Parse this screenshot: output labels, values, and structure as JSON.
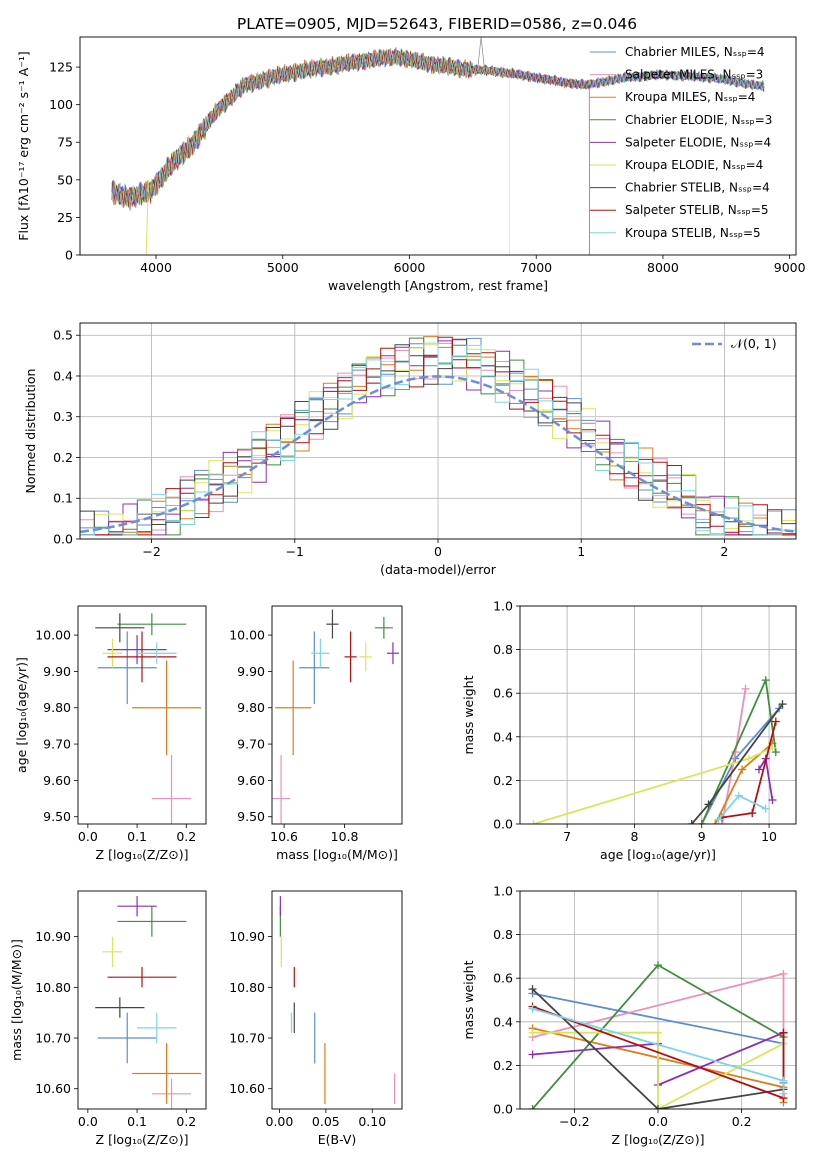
{
  "figure_title": "PLATE=0905, MJD=52643, FIBERID=0586, z=0.046",
  "colors": {
    "Chabrier MILES": "#5b8ed6",
    "Salpeter MILES": "#f28eb6",
    "Kroupa MILES": "#e07b1a",
    "Chabrier ELODIE": "#3f8f3f",
    "Salpeter ELODIE": "#8c2fb8",
    "Kroupa ELODIE": "#d8e65a",
    "Chabrier STELIB": "#444444",
    "Salpeter STELIB": "#b50f0f",
    "Kroupa STELIB": "#7ad6e6",
    "normal": "#6b8fd8"
  },
  "chart_data": [
    {
      "id": "spectrum",
      "type": "line",
      "title": "PLATE=0905, MJD=52643, FIBERID=0586, z=0.046",
      "xlabel": "wavelength [Angstrom, rest frame]",
      "ylabel": "Flux [fλ10⁻¹⁷ erg cm⁻² s⁻¹ A⁻¹]",
      "xlim": [
        3400,
        9050
      ],
      "ylim": [
        0,
        145
      ],
      "xticks": [
        4000,
        5000,
        6000,
        7000,
        8000,
        9000
      ],
      "yticks": [
        0,
        25,
        50,
        75,
        100,
        125
      ],
      "legend_position": "top-right",
      "series": [
        {
          "name": "Chabrier MILES, Nₛₛₚ=4"
        },
        {
          "name": "Salpeter MILES, Nₛₛₚ=3"
        },
        {
          "name": "Kroupa MILES, Nₛₛₚ=4"
        },
        {
          "name": "Chabrier ELODIE, Nₛₛₚ=3"
        },
        {
          "name": "Salpeter ELODIE, Nₛₛₚ=4"
        },
        {
          "name": "Kroupa ELODIE, Nₛₛₚ=4"
        },
        {
          "name": "Chabrier STELIB, Nₛₛₚ=4"
        },
        {
          "name": "Salpeter STELIB, Nₛₛₚ=5"
        },
        {
          "name": "Kroupa STELIB, Nₛₛₚ=5"
        }
      ],
      "continuum": {
        "x": [
          3650,
          3800,
          3950,
          4100,
          4300,
          4500,
          4700,
          4900,
          5100,
          5400,
          5700,
          5900,
          6100,
          6400,
          6700,
          7000,
          7200,
          7400,
          7700,
          8000,
          8400,
          8800
        ],
        "y": [
          42,
          38,
          42,
          58,
          75,
          98,
          113,
          118,
          122,
          126,
          130,
          132,
          128,
          124,
          122,
          118,
          115,
          113,
          118,
          120,
          118,
          112
        ]
      },
      "cutoffs": [
        {
          "series": "Kroupa ELODIE, Nₛₛₚ=4",
          "x": 6790
        },
        {
          "series": "Salpeter STELIB, Nₛₛₚ=5",
          "x": 7420
        }
      ]
    },
    {
      "id": "residuals",
      "type": "line",
      "xlabel": "(data-model)/error",
      "ylabel": "Normed distribution",
      "xlim": [
        -2.5,
        2.5
      ],
      "ylim": [
        0,
        0.53
      ],
      "xticks": [
        -2,
        -1,
        0,
        1,
        2
      ],
      "yticks": [
        0.0,
        0.1,
        0.2,
        0.3,
        0.4,
        0.5
      ],
      "grid": true,
      "legend_position": "top-right",
      "legend": [
        "𝒩(0, 1)"
      ]
    },
    {
      "id": "age_vs_Z",
      "type": "scatter",
      "xlabel": "Z [log₁₀(Z/Z⊙)]",
      "ylabel": "age  [log₁₀(age/yr)]",
      "xlim": [
        -0.02,
        0.24
      ],
      "ylim": [
        9.48,
        10.08
      ],
      "xticks": [
        0.0,
        0.1,
        0.2
      ],
      "yticks": [
        9.5,
        9.6,
        9.7,
        9.8,
        9.9,
        10.0
      ],
      "points": [
        {
          "series": "Chabrier MILES",
          "x": 0.08,
          "y": 9.91,
          "xerr": 0.06,
          "yerr": 0.1
        },
        {
          "series": "Salpeter MILES",
          "x": 0.17,
          "y": 9.55,
          "xerr": 0.04,
          "yerr": 0.12
        },
        {
          "series": "Kroupa MILES",
          "x": 0.16,
          "y": 9.8,
          "xerr": 0.07,
          "yerr": 0.13
        },
        {
          "series": "Chabrier ELODIE",
          "x": 0.13,
          "y": 10.03,
          "xerr": 0.07,
          "yerr": 0.03
        },
        {
          "series": "Salpeter ELODIE",
          "x": 0.1,
          "y": 9.96,
          "xerr": 0.06,
          "yerr": 0.04
        },
        {
          "series": "Kroupa ELODIE",
          "x": 0.05,
          "y": 9.95,
          "xerr": 0.02,
          "yerr": 0.04
        },
        {
          "series": "Chabrier STELIB",
          "x": 0.065,
          "y": 10.02,
          "xerr": 0.05,
          "yerr": 0.04
        },
        {
          "series": "Salpeter STELIB",
          "x": 0.11,
          "y": 9.94,
          "xerr": 0.07,
          "yerr": 0.07
        },
        {
          "series": "Kroupa STELIB",
          "x": 0.14,
          "y": 9.95,
          "xerr": 0.04,
          "yerr": 0.03
        }
      ]
    },
    {
      "id": "age_vs_mass",
      "type": "scatter",
      "xlabel": "mass [log₁₀(M/M⊙)]",
      "ylabel": "",
      "xlim": [
        10.56,
        10.99
      ],
      "ylim": [
        9.48,
        10.08
      ],
      "xticks": [
        10.6,
        10.8
      ],
      "yticks": [
        9.5,
        9.6,
        9.7,
        9.8,
        9.9,
        10.0
      ],
      "points": [
        {
          "series": "Chabrier MILES",
          "x": 10.7,
          "y": 9.91,
          "xerr": 0.05,
          "yerr": 0.1
        },
        {
          "series": "Salpeter MILES",
          "x": 10.59,
          "y": 9.55,
          "xerr": 0.03,
          "yerr": 0.12
        },
        {
          "series": "Kroupa MILES",
          "x": 10.63,
          "y": 9.8,
          "xerr": 0.06,
          "yerr": 0.13
        },
        {
          "series": "Chabrier ELODIE",
          "x": 10.93,
          "y": 10.02,
          "xerr": 0.03,
          "yerr": 0.03
        },
        {
          "series": "Salpeter ELODIE",
          "x": 10.96,
          "y": 9.95,
          "xerr": 0.02,
          "yerr": 0.03
        },
        {
          "series": "Kroupa ELODIE",
          "x": 10.87,
          "y": 9.94,
          "xerr": 0.02,
          "yerr": 0.04
        },
        {
          "series": "Chabrier STELIB",
          "x": 10.76,
          "y": 10.03,
          "xerr": 0.02,
          "yerr": 0.04
        },
        {
          "series": "Salpeter STELIB",
          "x": 10.82,
          "y": 9.94,
          "xerr": 0.02,
          "yerr": 0.07
        },
        {
          "series": "Kroupa STELIB",
          "x": 10.72,
          "y": 9.95,
          "xerr": 0.03,
          "yerr": 0.04
        }
      ]
    },
    {
      "id": "massweight_vs_age",
      "type": "line",
      "xlabel": "age  [log₁₀(age/yr)]",
      "ylabel": "mass weight",
      "xlim": [
        6.3,
        10.4
      ],
      "ylim": [
        0,
        1.0
      ],
      "xticks": [
        7,
        8,
        9,
        10
      ],
      "yticks": [
        0.0,
        0.2,
        0.4,
        0.6,
        0.8,
        1.0
      ],
      "grid": true,
      "series": [
        {
          "name": "Chabrier MILES",
          "x": [
            9.0,
            9.5,
            10.15
          ],
          "y": [
            0.0,
            0.3,
            0.53
          ]
        },
        {
          "name": "Salpeter MILES",
          "x": [
            9.3,
            9.5,
            9.65
          ],
          "y": [
            0.0,
            0.33,
            0.62
          ]
        },
        {
          "name": "Kroupa MILES",
          "x": [
            9.2,
            9.6,
            10.05
          ],
          "y": [
            0.0,
            0.25,
            0.37
          ]
        },
        {
          "name": "Chabrier ELODIE",
          "x": [
            9.0,
            9.95,
            10.1
          ],
          "y": [
            0.0,
            0.66,
            0.33
          ]
        },
        {
          "name": "Salpeter ELODIE",
          "x": [
            9.85,
            9.95,
            10.05
          ],
          "y": [
            0.25,
            0.3,
            0.11
          ]
        },
        {
          "name": "Kroupa ELODIE",
          "x": [
            6.5,
            9.7,
            10.05
          ],
          "y": [
            0.0,
            0.3,
            0.35
          ]
        },
        {
          "name": "Chabrier STELIB",
          "x": [
            8.85,
            9.1,
            10.2
          ],
          "y": [
            0.0,
            0.09,
            0.55
          ]
        },
        {
          "name": "Salpeter STELIB",
          "x": [
            9.3,
            9.75,
            10.1
          ],
          "y": [
            0.03,
            0.05,
            0.47
          ]
        },
        {
          "name": "Kroupa STELIB",
          "x": [
            9.25,
            9.55,
            9.95
          ],
          "y": [
            0.02,
            0.13,
            0.07
          ]
        }
      ]
    },
    {
      "id": "mass_vs_Z",
      "type": "scatter",
      "xlabel": "Z [log₁₀(Z/Z⊙)]",
      "ylabel": "mass [log₁₀(M/M⊙)]",
      "xlim": [
        -0.02,
        0.24
      ],
      "ylim": [
        10.56,
        10.99
      ],
      "xticks": [
        0.0,
        0.1,
        0.2
      ],
      "yticks": [
        10.6,
        10.7,
        10.8,
        10.9
      ],
      "points": [
        {
          "series": "Chabrier MILES",
          "x": 0.08,
          "y": 10.7,
          "xerr": 0.06,
          "yerr": 0.05
        },
        {
          "series": "Salpeter MILES",
          "x": 0.17,
          "y": 10.59,
          "xerr": 0.04,
          "yerr": 0.03
        },
        {
          "series": "Kroupa MILES",
          "x": 0.16,
          "y": 10.63,
          "xerr": 0.07,
          "yerr": 0.06
        },
        {
          "series": "Chabrier ELODIE",
          "x": 0.13,
          "y": 10.93,
          "xerr": 0.07,
          "yerr": 0.03
        },
        {
          "series": "Salpeter ELODIE",
          "x": 0.1,
          "y": 10.96,
          "xerr": 0.04,
          "yerr": 0.02
        },
        {
          "series": "Kroupa ELODIE",
          "x": 0.05,
          "y": 10.87,
          "xerr": 0.02,
          "yerr": 0.03
        },
        {
          "series": "Chabrier STELIB",
          "x": 0.065,
          "y": 10.76,
          "xerr": 0.05,
          "yerr": 0.02
        },
        {
          "series": "Salpeter STELIB",
          "x": 0.11,
          "y": 10.82,
          "xerr": 0.07,
          "yerr": 0.02
        },
        {
          "series": "Kroupa STELIB",
          "x": 0.14,
          "y": 10.72,
          "xerr": 0.04,
          "yerr": 0.03
        }
      ]
    },
    {
      "id": "mass_vs_ebv",
      "type": "scatter",
      "xlabel": "E(B-V)",
      "ylabel": "",
      "xlim": [
        -0.008,
        0.132
      ],
      "ylim": [
        10.56,
        10.99
      ],
      "xticks": [
        0.0,
        0.05,
        0.1
      ],
      "yticks": [
        10.6,
        10.7,
        10.8,
        10.9
      ],
      "points": [
        {
          "series": "Chabrier MILES",
          "x": 0.038,
          "y": 10.7,
          "xerr": 0,
          "yerr": 0.05
        },
        {
          "series": "Salpeter MILES",
          "x": 0.124,
          "y": 10.6,
          "xerr": 0,
          "yerr": 0.03
        },
        {
          "series": "Kroupa MILES",
          "x": 0.049,
          "y": 10.63,
          "xerr": 0,
          "yerr": 0.06
        },
        {
          "series": "Chabrier ELODIE",
          "x": 0.001,
          "y": 10.93,
          "xerr": 0,
          "yerr": 0.03
        },
        {
          "series": "Salpeter ELODIE",
          "x": 0.001,
          "y": 10.96,
          "xerr": 0,
          "yerr": 0.02
        },
        {
          "series": "Kroupa ELODIE",
          "x": 0.002,
          "y": 10.87,
          "xerr": 0,
          "yerr": 0.03
        },
        {
          "series": "Chabrier STELIB",
          "x": 0.016,
          "y": 10.74,
          "xerr": 0,
          "yerr": 0.03
        },
        {
          "series": "Salpeter STELIB",
          "x": 0.016,
          "y": 10.82,
          "xerr": 0,
          "yerr": 0.02
        },
        {
          "series": "Kroupa STELIB",
          "x": 0.013,
          "y": 10.73,
          "xerr": 0,
          "yerr": 0.02
        }
      ]
    },
    {
      "id": "massweight_vs_Z",
      "type": "line",
      "xlabel": "Z [log₁₀(Z/Z⊙)]",
      "ylabel": "mass weight",
      "xlim": [
        -0.33,
        0.33
      ],
      "ylim": [
        0,
        1.0
      ],
      "xticks": [
        -0.2,
        0.0,
        0.2
      ],
      "yticks": [
        0.0,
        0.2,
        0.4,
        0.6,
        0.8,
        1.0
      ],
      "grid": true,
      "series": [
        {
          "name": "Chabrier MILES",
          "x": [
            -0.3,
            0.3,
            0.3
          ],
          "y": [
            0.53,
            0.3,
            0.12
          ]
        },
        {
          "name": "Salpeter MILES",
          "x": [
            -0.3,
            0.3,
            0.3
          ],
          "y": [
            0.33,
            0.62,
            0.05
          ]
        },
        {
          "name": "Kroupa MILES",
          "x": [
            -0.3,
            0.3,
            0.3
          ],
          "y": [
            0.37,
            0.1,
            0.03
          ]
        },
        {
          "name": "Chabrier ELODIE",
          "x": [
            -0.3,
            0.0,
            0.3
          ],
          "y": [
            0.0,
            0.66,
            0.33
          ]
        },
        {
          "name": "Salpeter ELODIE",
          "x": [
            -0.3,
            0.0,
            0.0,
            0.3
          ],
          "y": [
            0.25,
            0.3,
            0.11,
            0.35
          ]
        },
        {
          "name": "Kroupa ELODIE",
          "x": [
            -0.3,
            0.0,
            0.0,
            0.3
          ],
          "y": [
            0.35,
            0.35,
            0.0,
            0.3
          ]
        },
        {
          "name": "Chabrier STELIB",
          "x": [
            -0.3,
            0.0,
            0.3
          ],
          "y": [
            0.55,
            0.0,
            0.09
          ]
        },
        {
          "name": "Salpeter STELIB",
          "x": [
            -0.3,
            0.3,
            0.3
          ],
          "y": [
            0.47,
            0.05,
            0.35
          ]
        },
        {
          "name": "Kroupa STELIB",
          "x": [
            -0.3,
            0.3,
            0.3
          ],
          "y": [
            0.46,
            0.13,
            0.07
          ]
        }
      ]
    }
  ]
}
